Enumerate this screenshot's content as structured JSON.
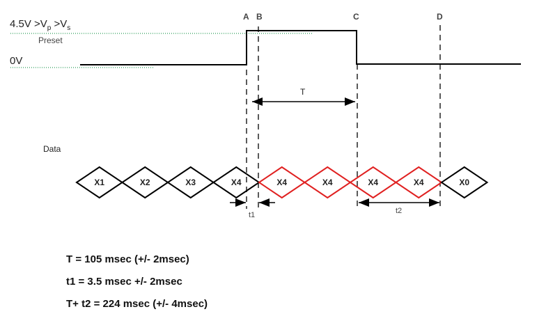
{
  "levels": {
    "high_label_main": "4.5V >V",
    "high_sub_p": "p",
    "high_mid": " >V",
    "high_sub_s": "s",
    "preset_label": "Preset",
    "low_label": "0V"
  },
  "markers": [
    "A",
    "B",
    "C",
    "D"
  ],
  "data_label": "Data",
  "cells": [
    {
      "text": "X1",
      "color": "#000000"
    },
    {
      "text": "X2",
      "color": "#000000"
    },
    {
      "text": "X3",
      "color": "#000000"
    },
    {
      "text": "X4",
      "color": "#000000"
    },
    {
      "text": "X4",
      "color": "#e02020"
    },
    {
      "text": "X4",
      "color": "#e02020"
    },
    {
      "text": "X4",
      "color": "#e02020"
    },
    {
      "text": "X4",
      "color": "#e02020"
    },
    {
      "text": "X0",
      "color": "#000000"
    }
  ],
  "intervals": {
    "T": "T",
    "t1": "t1",
    "t2": "t2"
  },
  "equations": [
    "T = 105 msec (+/- 2msec)",
    "t1 = 3.5 msec +/- 2msec",
    "T+ t2 = 224 msec (+/- 4msec)"
  ],
  "colors": {
    "signal": "#000000",
    "reference": "#2e9e5a",
    "highlight": "#e02020"
  }
}
